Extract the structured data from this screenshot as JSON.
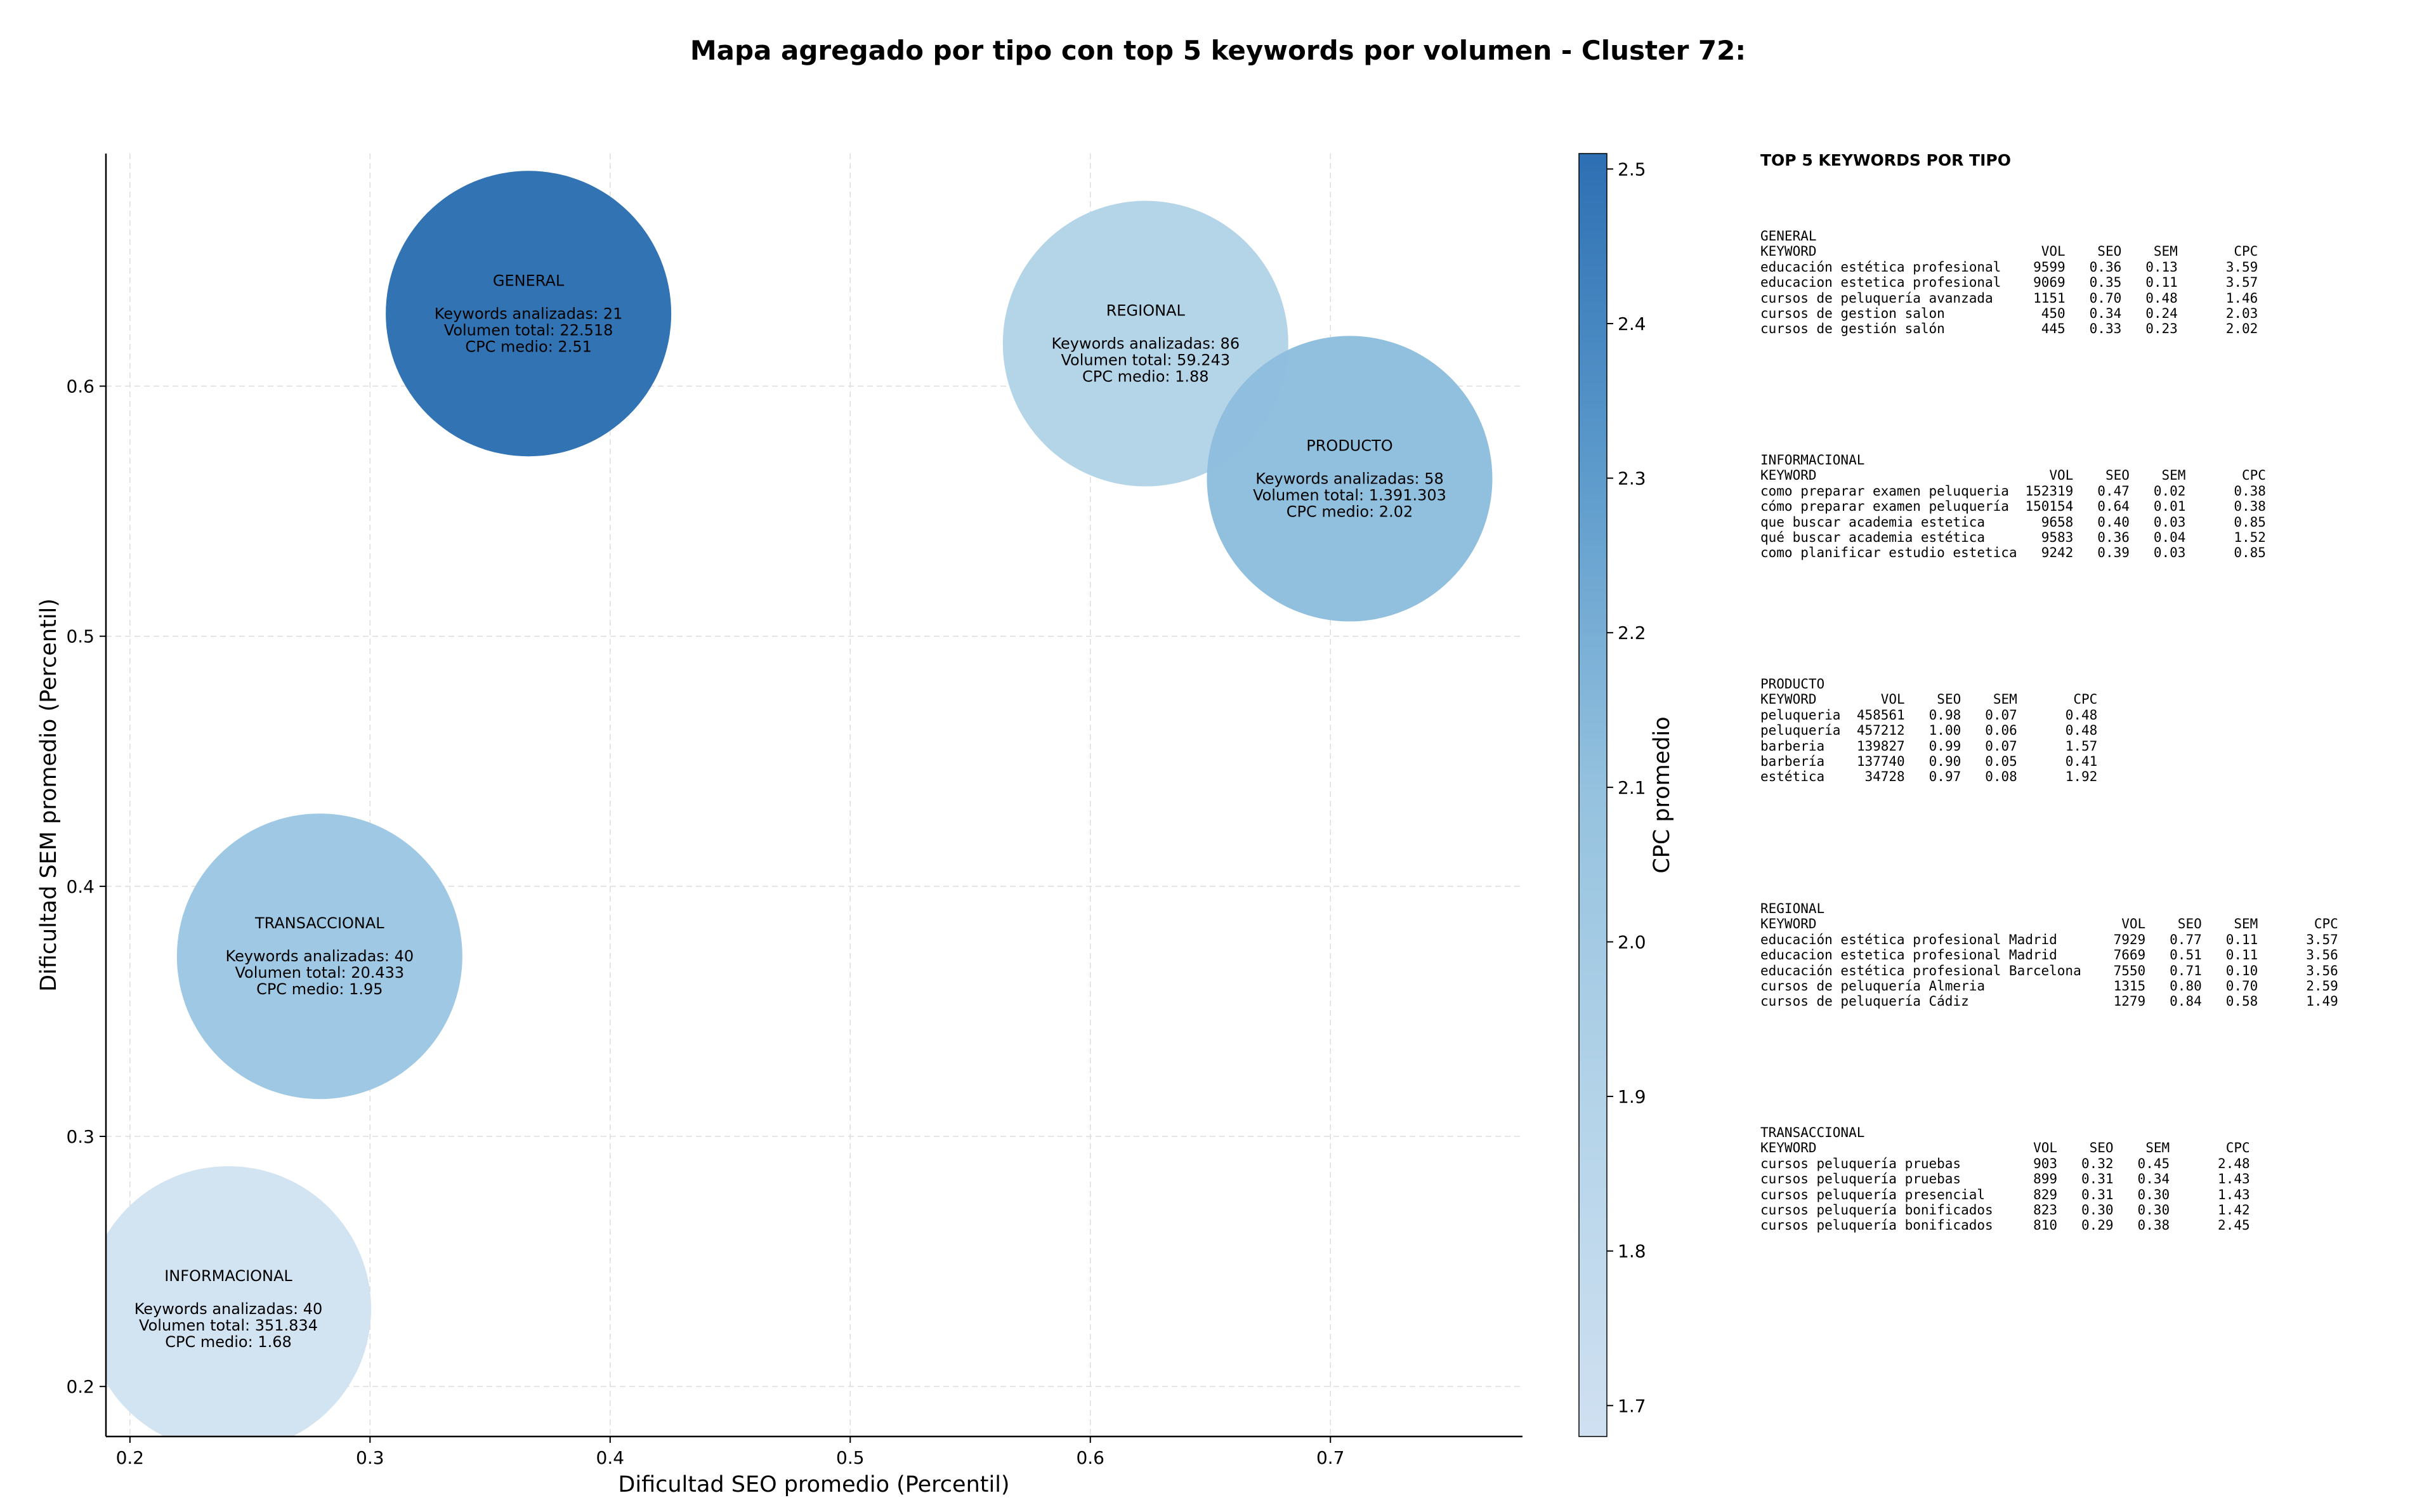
{
  "title": "Mapa agregado por tipo con top 5 keywords por volumen - Cluster 72:",
  "chart_data": {
    "type": "scatter",
    "variant": "bubble",
    "xlabel": "Dificultad SEO promedio (Percentil)",
    "ylabel": "Dificultad SEM promedio (Percentil)",
    "xlim": [
      0.19,
      0.78
    ],
    "ylim": [
      0.18,
      0.693
    ],
    "xticks": [
      "0.2",
      "0.3",
      "0.4",
      "0.5",
      "0.6",
      "0.7"
    ],
    "yticks": [
      "0.2",
      "0.3",
      "0.4",
      "0.5",
      "0.6"
    ],
    "grid": true,
    "colorbar": {
      "label": "CPC promedio",
      "range": [
        1.68,
        2.51
      ],
      "ticks": [
        "1.7",
        "1.8",
        "1.9",
        "2.0",
        "2.1",
        "2.2",
        "2.3",
        "2.4",
        "2.5"
      ],
      "colormap": "Blues",
      "color_low": "#cfe0f1",
      "color_high": "#2d6fb3"
    },
    "points": [
      {
        "type": "GENERAL",
        "x": 0.366,
        "y": 0.629,
        "cpc": 2.51,
        "color": "#2e70b3",
        "label_type": "GENERAL",
        "label_kw": "Keywords analizadas: 21",
        "label_vol": "Volumen total: 22.518",
        "label_cpc": "CPC medio: 2.51"
      },
      {
        "type": "REGIONAL",
        "x": 0.623,
        "y": 0.617,
        "cpc": 1.88,
        "color": "#b3d3e8",
        "label_type": "REGIONAL",
        "label_kw": "Keywords analizadas: 86",
        "label_vol": "Volumen total: 59.243",
        "label_cpc": "CPC medio: 1.88"
      },
      {
        "type": "PRODUCTO",
        "x": 0.708,
        "y": 0.563,
        "cpc": 2.02,
        "color": "#8fbedd",
        "label_type": "PRODUCTO",
        "label_kw": "Keywords analizadas: 58",
        "label_vol": "Volumen total: 1.391.303",
        "label_cpc": "CPC medio: 2.02"
      },
      {
        "type": "TRANSACCIONAL",
        "x": 0.279,
        "y": 0.372,
        "cpc": 1.95,
        "color": "#9cc7e2",
        "label_type": "TRANSACCIONAL",
        "label_kw": "Keywords analizadas: 40",
        "label_vol": "Volumen total: 20.433",
        "label_cpc": "CPC medio: 1.95"
      },
      {
        "type": "INFORMACIONAL",
        "x": 0.241,
        "y": 0.231,
        "cpc": 1.68,
        "color": "#d1e2f2",
        "label_type": "INFORMACIONAL",
        "label_kw": "Keywords analizadas: 40",
        "label_vol": "Volumen total: 351.834",
        "label_cpc": "CPC medio: 1.68"
      }
    ]
  },
  "side_panel": {
    "title": "TOP 5 KEYWORDS POR TIPO",
    "headers": {
      "keyword": "KEYWORD",
      "vol": "VOL",
      "seo": "SEO",
      "sem": "SEM",
      "cpc": "CPC"
    },
    "groups": [
      {
        "name": "GENERAL",
        "kw_chars": 30,
        "rows": [
          {
            "keyword": "educación estética profesional",
            "vol": "9599",
            "seo": "0.36",
            "sem": "0.13",
            "cpc": "3.59"
          },
          {
            "keyword": "educacion estetica profesional",
            "vol": "9069",
            "seo": "0.35",
            "sem": "0.11",
            "cpc": "3.57"
          },
          {
            "keyword": "cursos de peluquería avanzada",
            "vol": "1151",
            "seo": "0.70",
            "sem": "0.48",
            "cpc": "1.46"
          },
          {
            "keyword": "cursos de gestion salon",
            "vol": "450",
            "seo": "0.34",
            "sem": "0.24",
            "cpc": "2.03"
          },
          {
            "keyword": "cursos de gestión salón",
            "vol": "445",
            "seo": "0.33",
            "sem": "0.23",
            "cpc": "2.02"
          }
        ]
      },
      {
        "name": "INFORMACIONAL",
        "kw_chars": 31,
        "rows": [
          {
            "keyword": "como preparar examen peluqueria",
            "vol": "152319",
            "seo": "0.47",
            "sem": "0.02",
            "cpc": "0.38"
          },
          {
            "keyword": "cómo preparar examen peluquería",
            "vol": "150154",
            "seo": "0.64",
            "sem": "0.01",
            "cpc": "0.38"
          },
          {
            "keyword": "que buscar academia estetica",
            "vol": "9658",
            "seo": "0.40",
            "sem": "0.03",
            "cpc": "0.85"
          },
          {
            "keyword": "qué buscar academia estética",
            "vol": "9583",
            "seo": "0.36",
            "sem": "0.04",
            "cpc": "1.52"
          },
          {
            "keyword": "como planificar estudio estetica",
            "vol": "9242",
            "seo": "0.39",
            "sem": "0.03",
            "cpc": "0.85"
          }
        ]
      },
      {
        "name": "PRODUCTO",
        "kw_chars": 10,
        "rows": [
          {
            "keyword": "peluqueria",
            "vol": "458561",
            "seo": "0.98",
            "sem": "0.07",
            "cpc": "0.48"
          },
          {
            "keyword": "peluquería",
            "vol": "457212",
            "seo": "1.00",
            "sem": "0.06",
            "cpc": "0.48"
          },
          {
            "keyword": "barberia",
            "vol": "139827",
            "seo": "0.99",
            "sem": "0.07",
            "cpc": "1.57"
          },
          {
            "keyword": "barbería",
            "vol": "137740",
            "seo": "0.90",
            "sem": "0.05",
            "cpc": "0.41"
          },
          {
            "keyword": "estética",
            "vol": "34728",
            "seo": "0.97",
            "sem": "0.08",
            "cpc": "1.92"
          }
        ]
      },
      {
        "name": "REGIONAL",
        "kw_chars": 40,
        "rows": [
          {
            "keyword": "educación estética profesional Madrid",
            "vol": "7929",
            "seo": "0.77",
            "sem": "0.11",
            "cpc": "3.57"
          },
          {
            "keyword": "educacion estetica profesional Madrid",
            "vol": "7669",
            "seo": "0.51",
            "sem": "0.11",
            "cpc": "3.56"
          },
          {
            "keyword": "educación estética profesional Barcelona",
            "vol": "7550",
            "seo": "0.71",
            "sem": "0.10",
            "cpc": "3.56"
          },
          {
            "keyword": "cursos de peluquería Almeria",
            "vol": "1315",
            "seo": "0.80",
            "sem": "0.70",
            "cpc": "2.59"
          },
          {
            "keyword": "cursos de peluquería Cádiz",
            "vol": "1279",
            "seo": "0.84",
            "sem": "0.58",
            "cpc": "1.49"
          }
        ]
      },
      {
        "name": "TRANSACCIONAL",
        "kw_chars": 29,
        "rows": [
          {
            "keyword": "cursos peluquería pruebas",
            "vol": "903",
            "seo": "0.32",
            "sem": "0.45",
            "cpc": "2.48"
          },
          {
            "keyword": "cursos peluquería pruebas",
            "vol": "899",
            "seo": "0.31",
            "sem": "0.34",
            "cpc": "1.43"
          },
          {
            "keyword": "cursos peluquería presencial",
            "vol": "829",
            "seo": "0.31",
            "sem": "0.30",
            "cpc": "1.43"
          },
          {
            "keyword": "cursos peluquería bonificados",
            "vol": "823",
            "seo": "0.30",
            "sem": "0.30",
            "cpc": "1.42"
          },
          {
            "keyword": "cursos peluquería bonificados",
            "vol": "810",
            "seo": "0.29",
            "sem": "0.38",
            "cpc": "2.45"
          }
        ]
      }
    ]
  }
}
